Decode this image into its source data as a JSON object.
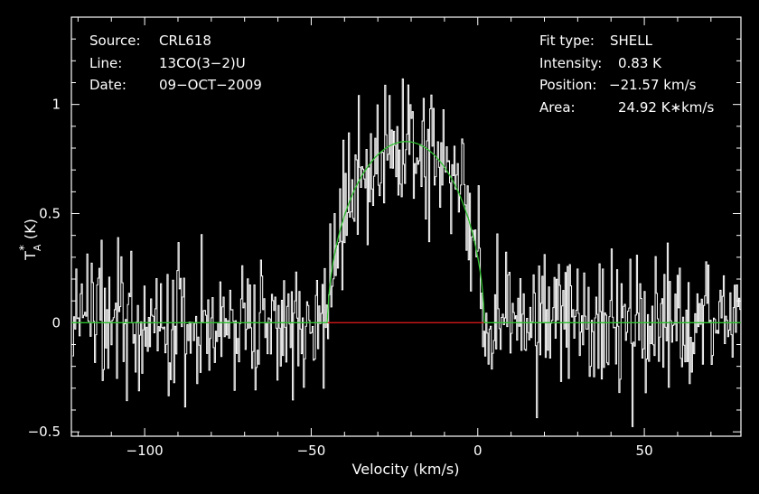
{
  "chart_data": {
    "type": "line",
    "xlabel": "Velocity (km/s)",
    "ylabel": "T",
    "ylabel_sub": "A",
    "ylabel_sup": "*",
    "ylabel_unit": "(K)",
    "xlim": [
      -122,
      79
    ],
    "ylim": [
      -0.52,
      1.4
    ],
    "xticks": [
      -100,
      -50,
      0,
      50
    ],
    "xtick_labels": [
      "−100",
      "−50",
      "0",
      "50"
    ],
    "yticks": [
      -0.5,
      0,
      0.5,
      1
    ],
    "ytick_labels": [
      "−0.5",
      "0",
      "0.5",
      "1"
    ],
    "grid": false,
    "colors": {
      "background": "#000000",
      "axes": "#ffffff",
      "spectrum": "#ffffff",
      "fit": "#2fc12f",
      "baseline": "#d01818"
    },
    "info_left": [
      {
        "key": "Source:",
        "value": "CRL618"
      },
      {
        "key": "Line:",
        "value": "13CO(3−2)U"
      },
      {
        "key": "Date:",
        "value": "09−OCT−2009"
      }
    ],
    "info_right": [
      {
        "key": "Fit type:",
        "value": "SHELL"
      },
      {
        "key": "Intensity:",
        "value": "0.83 K"
      },
      {
        "key": "Position:",
        "value": "−21.57 km/s"
      },
      {
        "key": "Area:",
        "value": "24.92 K∗km/s"
      }
    ],
    "fit": {
      "model": "shell",
      "intensity_K": 0.83,
      "center_kms": -21.57,
      "area_Kkms": 24.92,
      "half_width_kms": 23.5
    },
    "series": [
      {
        "type": "noisy_spectrum",
        "x_start": -121.5,
        "x_step": 0.33,
        "noise_sigma": 0.15,
        "values": []
      }
    ]
  }
}
